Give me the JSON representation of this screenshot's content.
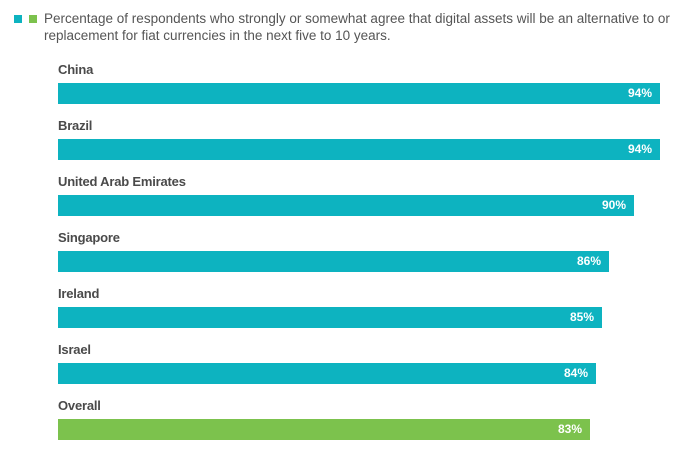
{
  "colors": {
    "primary": "#0db3c0",
    "overall": "#7cc24d"
  },
  "legend": {
    "text": "Percentage of respondents who strongly or somewhat agree that digital assets will be an alternative to or replacement for fiat currencies in the next five to 10 years."
  },
  "chart_data": {
    "type": "bar",
    "orientation": "horizontal",
    "title": "",
    "xlabel": "",
    "ylabel": "",
    "xlim": [
      0,
      100
    ],
    "grid": false,
    "legend_position": "top-left",
    "categories": [
      "China",
      "Brazil",
      "United Arab Emirates",
      "Singapore",
      "Ireland",
      "Israel",
      "Overall"
    ],
    "values": [
      94,
      94,
      90,
      86,
      85,
      84,
      83
    ],
    "value_labels": [
      "94%",
      "94%",
      "90%",
      "86%",
      "85%",
      "84%",
      "83%"
    ]
  }
}
